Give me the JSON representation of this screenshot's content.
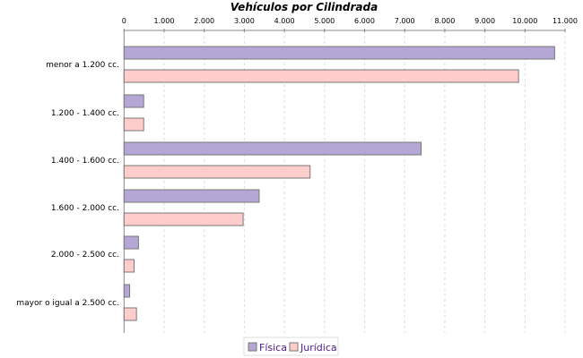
{
  "chart_data": {
    "type": "bar",
    "orientation": "horizontal",
    "title": "Vehículos por Cilindrada",
    "categories": [
      "menor a 1.200 cc.",
      "1.200 - 1.400 cc.",
      "1.400 - 1.600 cc.",
      "1.600 - 2.000 cc.",
      "2.000 - 2.500 cc.",
      "mayor o igual a 2.500 cc."
    ],
    "series": [
      {
        "name": "Física",
        "color": "#b4a7d6",
        "values": [
          10740,
          490,
          7410,
          3370,
          360,
          140
        ]
      },
      {
        "name": "Jurídica",
        "color": "#ffcccc",
        "values": [
          9840,
          490,
          4640,
          2970,
          250,
          310
        ]
      }
    ],
    "xlim": [
      0,
      11000
    ],
    "xticks": [
      "0",
      "1.000",
      "2.000",
      "3.000",
      "4.000",
      "5.000",
      "6.000",
      "7.000",
      "8.000",
      "9.000",
      "10.000",
      "11.000"
    ],
    "grid": true,
    "axis_position": "top",
    "legend": "bottom"
  }
}
